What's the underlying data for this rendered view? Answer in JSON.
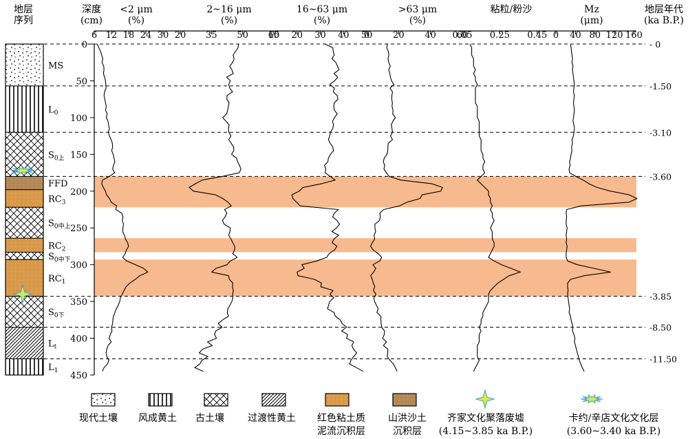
{
  "header": {
    "strat_col": [
      "地层",
      "序列"
    ],
    "depth_col": [
      "深度",
      "(cm)"
    ],
    "age_col": [
      "地层年代",
      "(ka B.P.)"
    ],
    "panels": [
      {
        "l1": "<2 μm",
        "l2": "(%)"
      },
      {
        "l1": "2~16 μm",
        "l2": "(%)"
      },
      {
        "l1": "16~63 μm",
        "l2": "(%)"
      },
      {
        "l1": ">63 μm",
        "l2": "(%)"
      },
      {
        "l1": "粘粒/粉沙",
        "l2": ""
      },
      {
        "l1": "Mz",
        "l2": "(μm)"
      }
    ]
  },
  "strata": [
    {
      "label": "MS",
      "sub": "",
      "top": 0,
      "bottom": 57,
      "type": "modern-soil"
    },
    {
      "label": "L",
      "sub": "0",
      "top": 57,
      "bottom": 120,
      "type": "loess"
    },
    {
      "label": "S",
      "sub": "0上",
      "top": 120,
      "bottom": 180,
      "type": "paleosol"
    },
    {
      "label": "FFD",
      "sub": "",
      "top": 180,
      "bottom": 198,
      "type": "flood-deposit"
    },
    {
      "label": "RC",
      "sub": "3",
      "top": 198,
      "bottom": 222,
      "type": "red-clay"
    },
    {
      "label": "S",
      "sub": "0中上",
      "top": 222,
      "bottom": 264,
      "type": "paleosol"
    },
    {
      "label": "RC",
      "sub": "2",
      "top": 264,
      "bottom": 283,
      "type": "red-clay"
    },
    {
      "label": "S",
      "sub": "0中下",
      "top": 283,
      "bottom": 293,
      "type": "paleosol"
    },
    {
      "label": "RC",
      "sub": "1",
      "top": 293,
      "bottom": 343,
      "type": "red-clay"
    },
    {
      "label": "S",
      "sub": "0下",
      "top": 343,
      "bottom": 385,
      "type": "paleosol"
    },
    {
      "label": "L",
      "sub": "t",
      "top": 385,
      "bottom": 428,
      "type": "transitional-loess"
    },
    {
      "label": "L",
      "sub": "1",
      "top": 428,
      "bottom": 450,
      "type": "loess"
    }
  ],
  "ages": [
    {
      "depth": 0,
      "label": "0"
    },
    {
      "depth": 57,
      "label": "1.50"
    },
    {
      "depth": 120,
      "label": "3.10"
    },
    {
      "depth": 180,
      "label": "3.60"
    },
    {
      "depth": 343,
      "label": "3.85"
    },
    {
      "depth": 385,
      "label": "8.50"
    },
    {
      "depth": 428,
      "label": "11.50"
    }
  ],
  "legend": [
    {
      "label1": "现代土壤",
      "label2": "",
      "type": "modern-soil"
    },
    {
      "label1": "风成黄土",
      "label2": "",
      "type": "loess"
    },
    {
      "label1": "古土壤",
      "label2": "",
      "type": "paleosol"
    },
    {
      "label1": "过渡性黄土",
      "label2": "",
      "type": "transitional-loess"
    },
    {
      "label1": "红色粘土质",
      "label2": "泥流沉积层",
      "type": "red-clay"
    },
    {
      "label1": "山洪沙土",
      "label2": "沉积层",
      "type": "flood-deposit"
    },
    {
      "label1": "齐家文化聚落废墟",
      "label2": "(4.15~3.85 ka B.P.)",
      "type": "star-4"
    },
    {
      "label1": "卡约/辛店文化文化层",
      "label2": "(3.60~3.40 ka B.P.)",
      "type": "star-burst"
    }
  ],
  "colors": {
    "red_clay": "#d99a4c",
    "flood": "#b5895a",
    "band": "#f7b98e",
    "star": "#d8e84a",
    "star_edge": "#3aa0d8"
  },
  "chart_data": {
    "type": "line",
    "y": {
      "label": "深度 (cm)",
      "lim": [
        0,
        450
      ],
      "ticks": [
        0,
        50,
        100,
        150,
        200,
        250,
        300,
        350,
        400,
        450
      ],
      "inverted": true
    },
    "highlight_bands": [
      [
        180,
        222
      ],
      [
        264,
        283
      ],
      [
        293,
        343
      ]
    ],
    "artifact_markers": [
      {
        "type": "卡约/辛店文化文化层",
        "depth": 172
      },
      {
        "type": "齐家文化聚落废墟",
        "depth": 340
      }
    ],
    "depth": [
      0,
      5,
      10,
      15,
      20,
      25,
      30,
      35,
      40,
      45,
      50,
      55,
      60,
      65,
      70,
      75,
      80,
      85,
      90,
      95,
      100,
      105,
      110,
      115,
      120,
      125,
      130,
      135,
      140,
      145,
      150,
      155,
      160,
      165,
      170,
      175,
      180,
      185,
      190,
      195,
      200,
      205,
      210,
      215,
      220,
      225,
      230,
      235,
      240,
      245,
      250,
      255,
      260,
      265,
      270,
      275,
      280,
      285,
      290,
      295,
      300,
      305,
      310,
      315,
      320,
      325,
      330,
      335,
      340,
      345,
      350,
      355,
      360,
      365,
      370,
      375,
      380,
      385,
      390,
      395,
      400,
      405,
      410,
      415,
      420,
      425,
      430,
      435,
      440,
      445
    ],
    "series": [
      {
        "name": "<2 μm (%)",
        "xlim": [
          6,
          36
        ],
        "ticks": [
          6,
          12,
          18,
          24,
          30
        ],
        "values": [
          7,
          7.6,
          8.2,
          8.6,
          9,
          8.7,
          9.3,
          9.4,
          9.2,
          9.6,
          9.9,
          10,
          10.1,
          9.6,
          9.4,
          9.7,
          9.9,
          10.2,
          9.9,
          10.5,
          10.2,
          10.8,
          11,
          11.3,
          10.9,
          11.3,
          11.9,
          12.3,
          12.4,
          12.1,
          12.6,
          12.9,
          13.2,
          12.7,
          12.4,
          13.1,
          11.3,
          8.9,
          8.6,
          9.2,
          9.9,
          10.3,
          11.3,
          11.9,
          13.8,
          13.5,
          15.6,
          16,
          15.8,
          16.2,
          16,
          15.9,
          16.5,
          16.9,
          17.6,
          18,
          17.2,
          16.8,
          15.9,
          17.3,
          20.4,
          23.2,
          24.7,
          21.9,
          20.3,
          18.4,
          17.1,
          16.4,
          15.8,
          15.1,
          14.9,
          14.4,
          13.7,
          13.2,
          12.7,
          12.5,
          12.4,
          12,
          12.2,
          11.6,
          11.2,
          11.9,
          10.8,
          10.4,
          10.1,
          10.4,
          11.1,
          10.6,
          9.4,
          8.8
        ]
      },
      {
        "name": "2~16 μm (%)",
        "xlim": [
          20,
          65
        ],
        "ticks": [
          20,
          35,
          50,
          65
        ],
        "values": [
          48,
          47.8,
          46.6,
          45.4,
          45.9,
          45.2,
          43.8,
          44.8,
          45.5,
          42.3,
          44.1,
          43.3,
          43.8,
          45.1,
          42.5,
          42.4,
          43.5,
          43.1,
          42.8,
          42.3,
          40.4,
          42,
          43.5,
          43.2,
          43.4,
          44.4,
          43.3,
          44.5,
          45.7,
          45.7,
          44.7,
          47,
          47.6,
          48.5,
          49.2,
          48.4,
          40.1,
          30.6,
          27.2,
          24.3,
          26.4,
          36.9,
          40.5,
          42.9,
          44.6,
          41.3,
          42.4,
          41.5,
          40.3,
          41.1,
          44.1,
          43.9,
          43.3,
          44.4,
          45.2,
          46.2,
          46.1,
          45.2,
          47.4,
          44.1,
          42.5,
          37.2,
          35.1,
          43.3,
          43.6,
          45.3,
          45.1,
          45.5,
          45.2,
          45.3,
          44.8,
          43.9,
          42.9,
          42.6,
          43.2,
          40.4,
          38.2,
          40.2,
          37.1,
          36.5,
          37.4,
          33.1,
          35.4,
          30.7,
          29.1,
          33.3,
          30.4,
          29.4,
          26.9,
          31.1
        ]
      },
      {
        "name": "16~63 μm (%)",
        "xlim": [
          10,
          50
        ],
        "ticks": [
          10,
          20,
          30,
          40,
          50
        ],
        "values": [
          32,
          35.4,
          35.6,
          36,
          35,
          36.7,
          37.4,
          38.1,
          35.9,
          37.5,
          36.2,
          34.1,
          36.1,
          35.6,
          37.3,
          37.6,
          36,
          35.8,
          36.1,
          37.3,
          36.1,
          35.3,
          35.7,
          35.4,
          34.3,
          34.1,
          33.5,
          34.3,
          35.4,
          35.7,
          34.4,
          33.5,
          33.3,
          31.8,
          32.4,
          32.1,
          34.3,
          36.4,
          30.4,
          22.6,
          20.9,
          17.8,
          18.2,
          19.8,
          21.3,
          37.8,
          36.1,
          35.3,
          37.2,
          38.3,
          37,
          35,
          37.9,
          35.9,
          35.1,
          37.2,
          36.1,
          33.8,
          32.8,
          28.5,
          22.1,
          23.1,
          20,
          20.4,
          27.5,
          30.5,
          30.2,
          35.5,
          34.2,
          35.8,
          34.1,
          33.6,
          33.1,
          35.9,
          36.5,
          38.6,
          39.4,
          41.3,
          39.2,
          41.8,
          41.3,
          44.4,
          43.6,
          44.3,
          45.7,
          44.4,
          43.2,
          42.6,
          45.6,
          48.5
        ]
      },
      {
        "name": ">63 μm (%)",
        "xlim": [
          0,
          60
        ],
        "ticks": [
          0,
          20,
          40,
          60
        ],
        "values": [
          13,
          12.6,
          13.5,
          13.9,
          13.4,
          13.8,
          14.8,
          13.8,
          14.5,
          14.9,
          15.6,
          17.2,
          14.6,
          16.2,
          15.8,
          15.7,
          16.1,
          15.9,
          16.5,
          16.3,
          18,
          16.4,
          15.4,
          15.9,
          16.2,
          14.9,
          16.2,
          13.5,
          13.3,
          13.2,
          12.7,
          11,
          10.4,
          11.3,
          10.8,
          12.3,
          14.1,
          21.3,
          41,
          47.6,
          46.4,
          34.8,
          33.4,
          25.4,
          20.6,
          10.6,
          8.2,
          8.6,
          8,
          5.1,
          5.2,
          5.6,
          4.6,
          5,
          3.5,
          2.4,
          4.1,
          7.2,
          9.4,
          8.1,
          3.9,
          5.7,
          4.3,
          2.5,
          3.5,
          4.1,
          5.1,
          4.2,
          5.8,
          4.5,
          4.9,
          6.1,
          7.2,
          6.4,
          8.9,
          8.9,
          9,
          9.4,
          11.2,
          11,
          10,
          12.4,
          10.5,
          13.3,
          13.2,
          12.8,
          14.6,
          16.8,
          17.9,
          19.1
        ]
      },
      {
        "name": "粘粒/粉沙",
        "xlim": [
          0.05,
          0.55
        ],
        "ticks": [
          0.05,
          0.25,
          0.45
        ],
        "values": [
          0.09,
          0.1,
          0.1,
          0.1,
          0.11,
          0.11,
          0.11,
          0.12,
          0.11,
          0.12,
          0.12,
          0.13,
          0.12,
          0.12,
          0.12,
          0.12,
          0.12,
          0.13,
          0.13,
          0.13,
          0.13,
          0.14,
          0.14,
          0.14,
          0.14,
          0.14,
          0.15,
          0.15,
          0.15,
          0.15,
          0.16,
          0.16,
          0.17,
          0.16,
          0.16,
          0.17,
          0.15,
          0.13,
          0.15,
          0.17,
          0.19,
          0.19,
          0.2,
          0.2,
          0.21,
          0.2,
          0.21,
          0.21,
          0.22,
          0.21,
          0.2,
          0.21,
          0.21,
          0.21,
          0.22,
          0.22,
          0.21,
          0.2,
          0.19,
          0.22,
          0.26,
          0.31,
          0.36,
          0.3,
          0.27,
          0.24,
          0.22,
          0.2,
          0.19,
          0.19,
          0.19,
          0.18,
          0.17,
          0.16,
          0.16,
          0.15,
          0.15,
          0.14,
          0.15,
          0.14,
          0.14,
          0.14,
          0.13,
          0.13,
          0.13,
          0.13,
          0.14,
          0.13,
          0.12,
          0.11
        ]
      },
      {
        "name": "Mz (μm)",
        "xlim": [
          0,
          165
        ],
        "ticks": [
          0,
          40,
          80,
          120,
          160
        ],
        "values": [
          30,
          31,
          32,
          33,
          34,
          33,
          35,
          34,
          35,
          36,
          37,
          38,
          37,
          36,
          38,
          37,
          36,
          37,
          38,
          37,
          36,
          35,
          37,
          38,
          37,
          36,
          33,
          34,
          32,
          33,
          31,
          30,
          28,
          29,
          27,
          28,
          41,
          56,
          68,
          84,
          112,
          150,
          166,
          150,
          52,
          22,
          21,
          22,
          21,
          21,
          23,
          22,
          21,
          22,
          21,
          23,
          22,
          21,
          21,
          24,
          44,
          78,
          112,
          58,
          30,
          24,
          24,
          25,
          24,
          25,
          26,
          27,
          28,
          27,
          30,
          31,
          33,
          35,
          34,
          37,
          39,
          38,
          40,
          42,
          44,
          46,
          48,
          51,
          54,
          58
        ]
      }
    ]
  }
}
